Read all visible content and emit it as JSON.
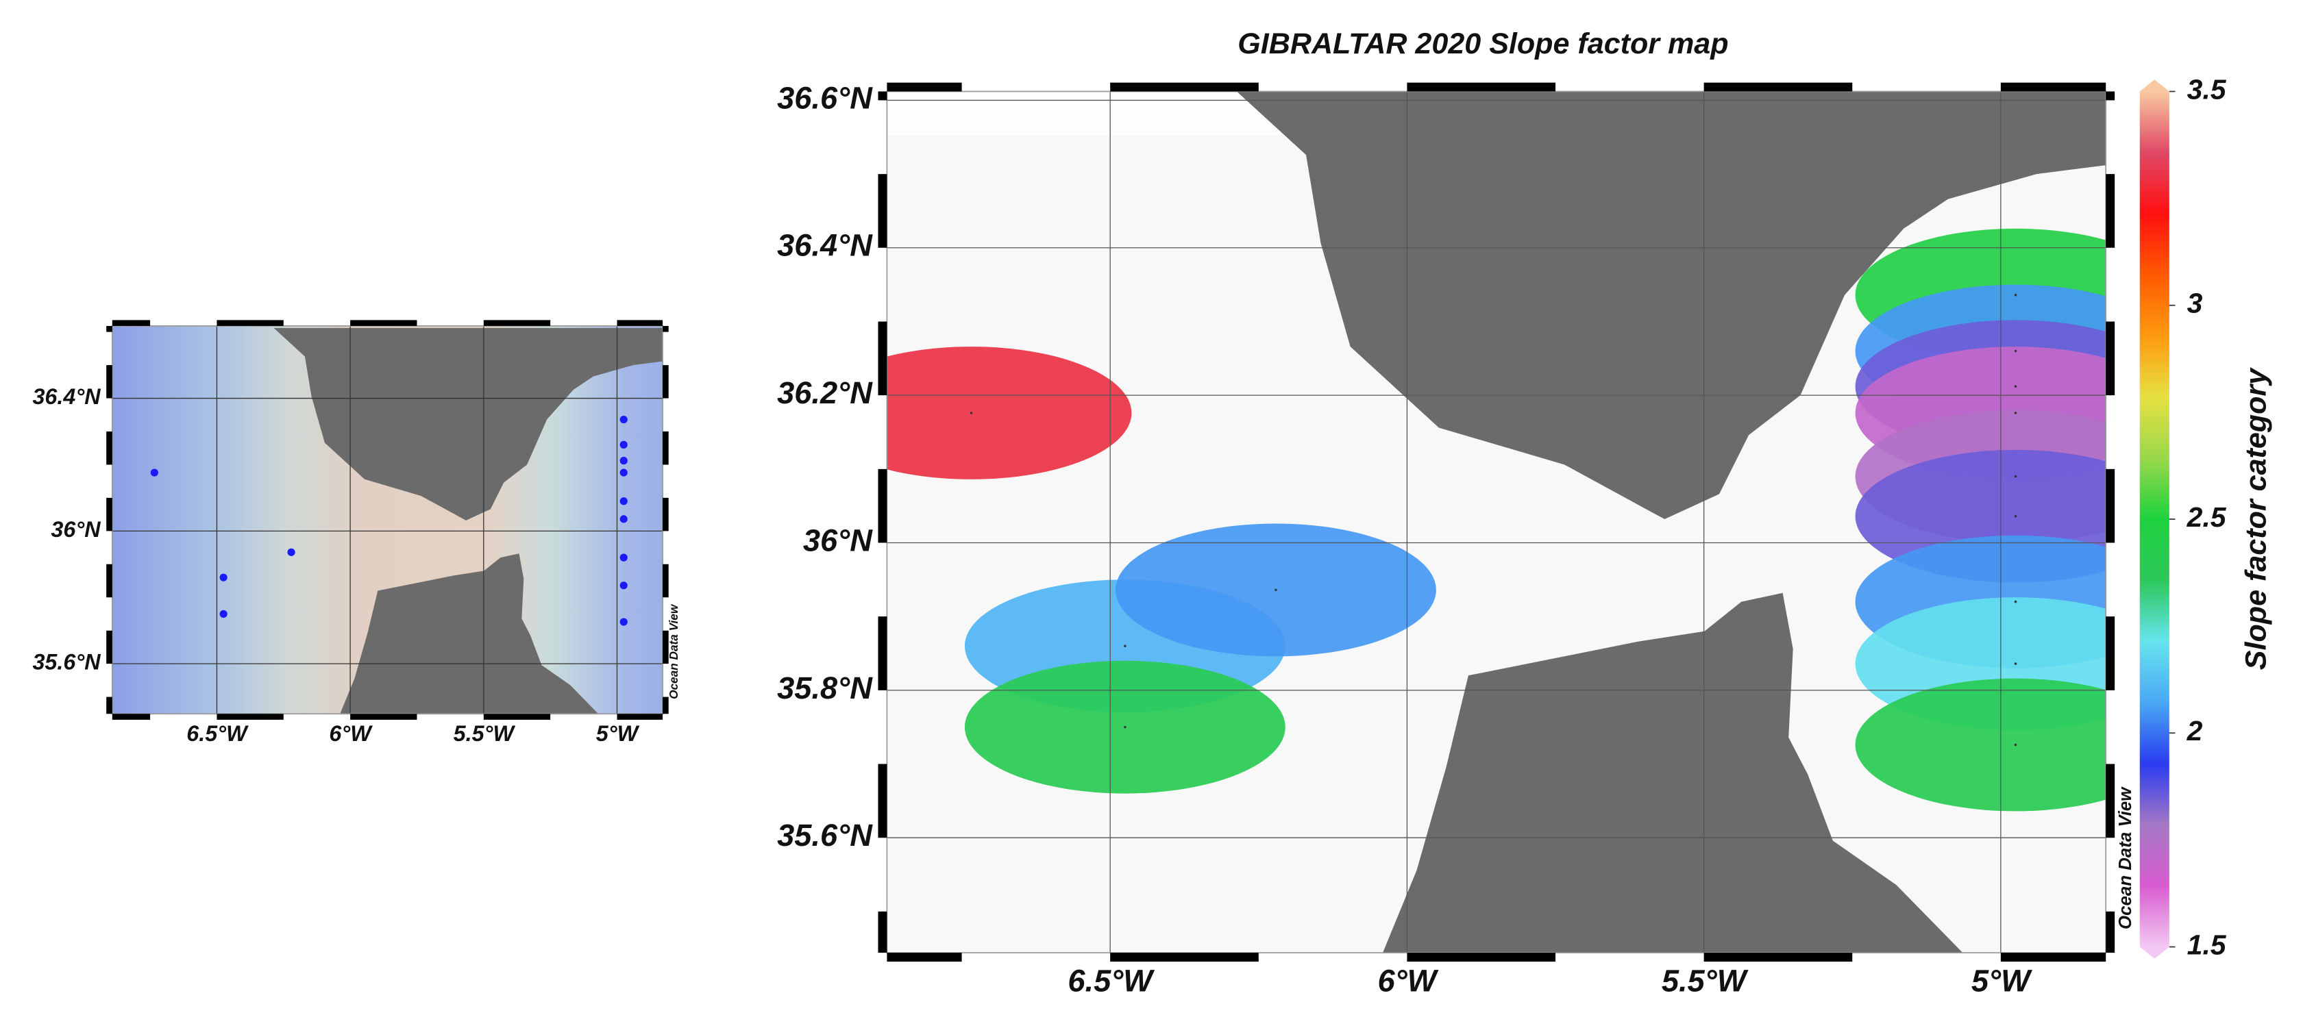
{
  "title": "GIBRALTAR 2020 Slope factor map",
  "watermark": "Ocean Data View",
  "xlim": [
    -6.876,
    -4.823
  ],
  "ylim": [
    35.444,
    36.612
  ],
  "xticks": [
    {
      "value": -6.5,
      "label": "6.5°W"
    },
    {
      "value": -6,
      "label": "6°W"
    },
    {
      "value": -5.5,
      "label": "5.5°W"
    },
    {
      "value": -5,
      "label": "5°W"
    }
  ],
  "yticks": [
    {
      "value": 35.6,
      "label": "35.6°N"
    },
    {
      "value": 35.8,
      "label": "35.8°N"
    },
    {
      "value": 36,
      "label": "36°N"
    },
    {
      "value": 36.2,
      "label": "36.2°N"
    },
    {
      "value": 36.4,
      "label": "36.4°N"
    },
    {
      "value": 36.6,
      "label": "36.6°N"
    }
  ],
  "inset": {
    "xlim": [
      -6.892,
      -4.829
    ],
    "ylim": [
      35.449,
      36.618
    ],
    "xticks": [
      {
        "value": -6.5,
        "label": "6.5°W"
      },
      {
        "value": -6,
        "label": "6°W"
      },
      {
        "value": -5.5,
        "label": "5.5°W"
      },
      {
        "value": -5,
        "label": "5°W"
      }
    ],
    "yticks": [
      {
        "value": 35.6,
        "label": "35.6°N"
      },
      {
        "value": 36,
        "label": "36°N"
      },
      {
        "value": 36.4,
        "label": "36.4°N"
      }
    ],
    "station_color": "#1a1aff"
  },
  "stations": [
    {
      "lon": -6.734,
      "lat": 36.176,
      "value": 3.3
    },
    {
      "lon": -6.475,
      "lat": 35.86,
      "value": 2.1
    },
    {
      "lon": -6.475,
      "lat": 35.75,
      "value": 2.4
    },
    {
      "lon": -6.221,
      "lat": 35.936,
      "value": 2.05
    },
    {
      "lon": -4.975,
      "lat": 36.336,
      "value": 2.45
    },
    {
      "lon": -4.975,
      "lat": 36.26,
      "value": 2.05
    },
    {
      "lon": -4.975,
      "lat": 36.212,
      "value": 1.85
    },
    {
      "lon": -4.975,
      "lat": 36.176,
      "value": 1.7
    },
    {
      "lon": -4.975,
      "lat": 36.09,
      "value": 1.75
    },
    {
      "lon": -4.975,
      "lat": 36.036,
      "value": 1.85
    },
    {
      "lon": -4.975,
      "lat": 35.92,
      "value": 2.05
    },
    {
      "lon": -4.975,
      "lat": 35.836,
      "value": 2.2
    },
    {
      "lon": -4.975,
      "lat": 35.726,
      "value": 2.4
    }
  ],
  "land_color": "#6b6b6b",
  "colorbar": {
    "label": "Slope factor category",
    "lim": [
      1.5,
      3.5
    ],
    "ticks": [
      1.5,
      2,
      2.5,
      3,
      3.5
    ],
    "colors": [
      "#f2c8f2",
      "#d85cd0",
      "#a478c4",
      "#2a3cf0",
      "#4aa8f4",
      "#66e4ee",
      "#2cc85a",
      "#1ed23e",
      "#9ad84a",
      "#e6e040",
      "#ff9a10",
      "#ff5a00",
      "#ff1010",
      "#e04866",
      "#f8c8a0"
    ]
  }
}
